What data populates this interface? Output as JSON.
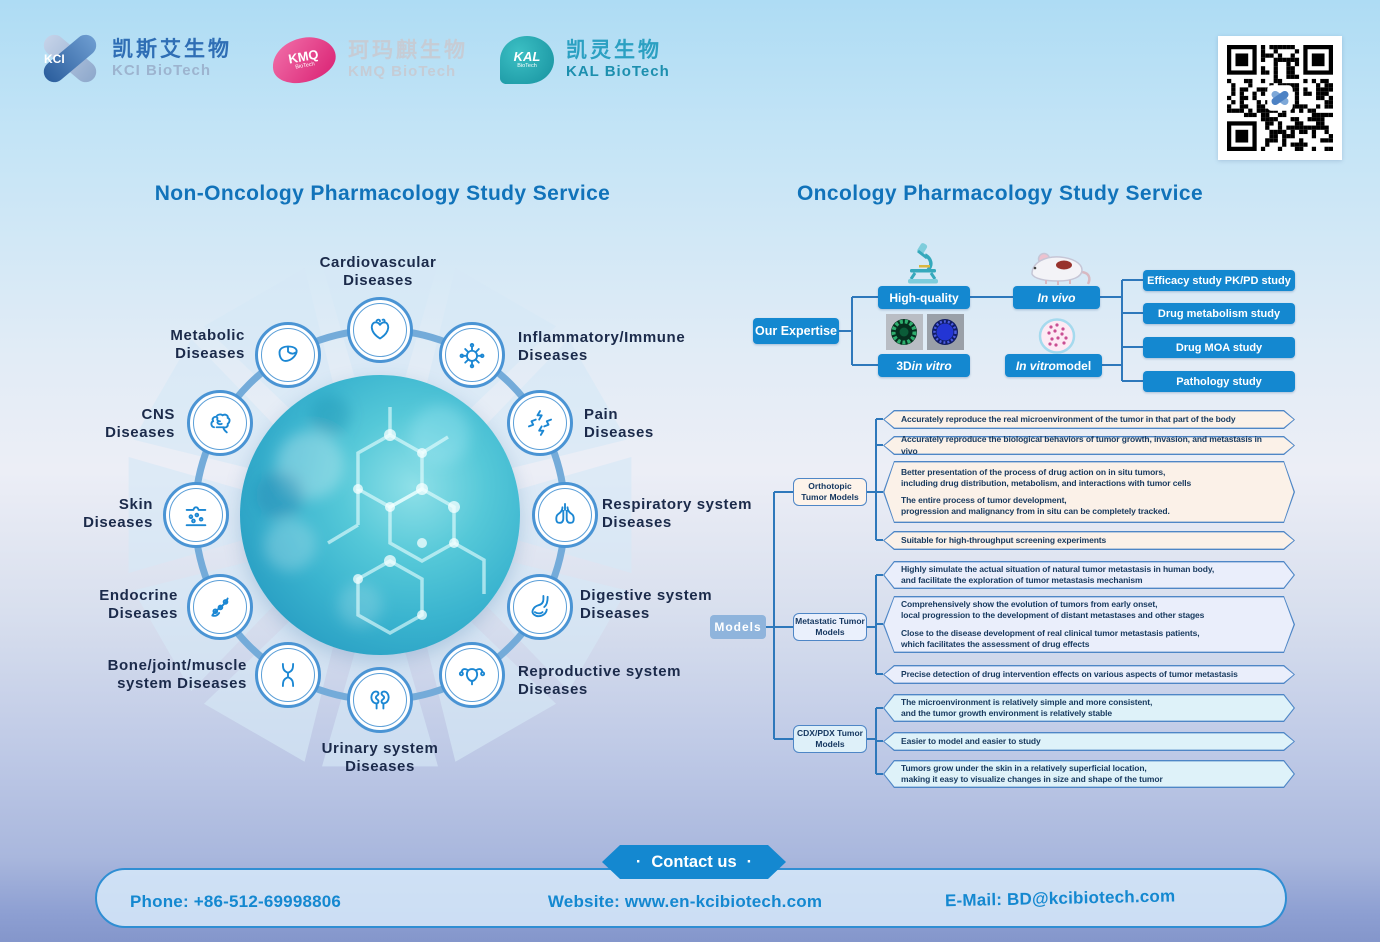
{
  "header": {
    "logos": [
      {
        "short": "KCI",
        "badge_sub": "",
        "cn": "凯斯艾生物",
        "en": "KCI BioTech"
      },
      {
        "short": "KMQ",
        "badge_sub": "BioTech",
        "cn": "珂玛麒生物",
        "en": "KMQ BioTech"
      },
      {
        "short": "KAL",
        "badge_sub": "BioTech",
        "cn": "凯灵生物",
        "en": "KAL BioTech"
      }
    ]
  },
  "left": {
    "title": "Non-Oncology Pharmacology Study Service",
    "diseases": [
      {
        "icon": "heart-icon",
        "label": "Cardiovascular\nDiseases"
      },
      {
        "icon": "immune-cell-icon",
        "label": "Inflammatory/Immune\nDiseases"
      },
      {
        "icon": "pain-bolts-icon",
        "label": "Pain\nDiseases"
      },
      {
        "icon": "lungs-icon",
        "label": "Respiratory system\nDiseases"
      },
      {
        "icon": "stomach-icon",
        "label": "Digestive system\nDiseases"
      },
      {
        "icon": "uterus-icon",
        "label": "Reproductive system\nDiseases"
      },
      {
        "icon": "kidneys-icon",
        "label": "Urinary system\nDiseases"
      },
      {
        "icon": "joint-icon",
        "label": "Bone/joint/muscle\nsystem Diseases"
      },
      {
        "icon": "gland-icon",
        "label": "Endocrine\nDiseases"
      },
      {
        "icon": "skin-icon",
        "label": "Skin\nDiseases"
      },
      {
        "icon": "brain-icon",
        "label": "CNS\nDiseases"
      },
      {
        "icon": "liver-icon",
        "label": "Metabolic\nDiseases"
      }
    ]
  },
  "right": {
    "title": "Oncology Pharmacology Study Service",
    "expertise": {
      "root": "Our Expertise",
      "high_quality": "High-quality",
      "in_vivo": {
        "italic": "In vivo"
      },
      "three_d": {
        "pre": "3D ",
        "italic": "in vitro"
      },
      "in_vitro_model": {
        "italic": "In vitro ",
        "post": "model"
      },
      "studies": [
        "Efficacy study PK/PD study",
        "Drug metabolism study",
        "Drug MOA study",
        "Pathology study"
      ]
    },
    "models": {
      "root": "Models",
      "groups": [
        {
          "label": "Orthotopic\nTumor Models",
          "items": [
            {
              "paras": [
                "Accurately reproduce the real microenvironment of the tumor in that part of the body"
              ]
            },
            {
              "paras": [
                "Accurately reproduce the biological behaviors of tumor growth, invasion, and metastasis in vivo"
              ]
            },
            {
              "paras": [
                "Better presentation of the process of drug action on in situ tumors,\nincluding drug distribution, metabolism, and interactions with tumor cells",
                "The entire process of tumor development,\nprogression and malignancy from in situ can be completely tracked."
              ]
            },
            {
              "paras": [
                "Suitable for high-throughput screening experiments"
              ]
            }
          ]
        },
        {
          "label": "Metastatic Tumor\nModels",
          "items": [
            {
              "paras": [
                "Highly simulate the actual situation of natural tumor metastasis in human body,\nand facilitate the exploration of tumor metastasis mechanism"
              ]
            },
            {
              "paras": [
                "Comprehensively show the evolution of tumors from early onset,\nlocal progression to the development of distant metastases and other stages",
                "Close to the disease development of real clinical tumor metastasis patients,\nwhich facilitates the assessment of drug effects"
              ]
            },
            {
              "paras": [
                "Precise detection of drug intervention effects on various aspects of tumor metastasis"
              ]
            }
          ]
        },
        {
          "label": "CDX/PDX Tumor\nModels",
          "items": [
            {
              "paras": [
                "The microenvironment is relatively simple and more consistent,\nand the tumor growth environment is relatively stable"
              ]
            },
            {
              "paras": [
                "Easier to model and easier to study"
              ]
            },
            {
              "paras": [
                "Tumors grow under the skin in a relatively superficial location,\nmaking it easy to visualize changes in size and shape of the tumor"
              ]
            }
          ]
        }
      ]
    }
  },
  "contact": {
    "dot": "·",
    "badge": "Contact us",
    "phone": "Phone: +86-512-69998806",
    "website": "Website: www.en-kcibiotech.com",
    "email": "E-Mail: BD@kcibiotech.com"
  },
  "colors": {
    "accent_blue": "#1488d0",
    "title_blue": "#1173ba",
    "line_blue": "#2e78bb"
  }
}
